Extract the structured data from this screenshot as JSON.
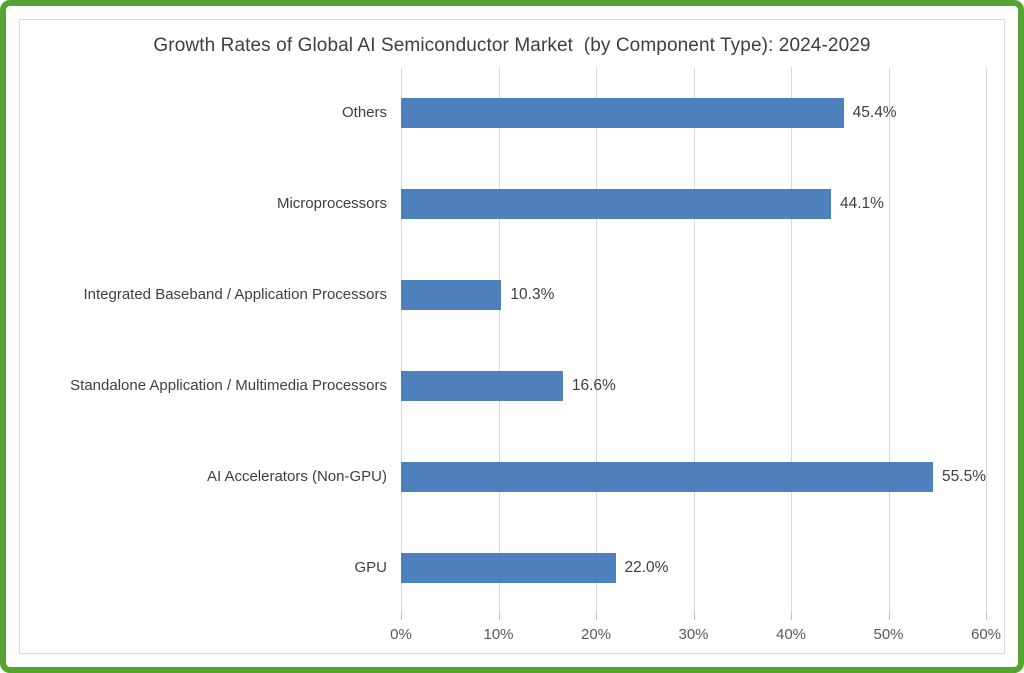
{
  "frame": {
    "border_color": "#55a331",
    "inner_border_color": "#d9d9d9"
  },
  "chart_data": {
    "type": "bar",
    "orientation": "horizontal",
    "title": "Growth Rates of Global AI Semiconductor Market  (by Component Type): 2024-2029",
    "xlabel": "",
    "ylabel": "",
    "categories": [
      "Others",
      "Microprocessors",
      "Integrated Baseband / Application Processors",
      "Standalone Application / Multimedia Processors",
      "AI Accelerators (Non-GPU)",
      "GPU"
    ],
    "values": [
      45.4,
      44.1,
      10.3,
      16.6,
      55.5,
      22.0
    ],
    "value_labels": [
      "45.4%",
      "44.1%",
      "10.3%",
      "16.6%",
      "55.5%",
      "22.0%"
    ],
    "xlim": [
      0,
      60
    ],
    "x_ticks": [
      "0%",
      "10%",
      "20%",
      "30%",
      "40%",
      "50%",
      "60%"
    ],
    "x_tick_values": [
      0,
      10,
      20,
      30,
      40,
      50,
      60
    ],
    "grid": true,
    "legend": "none",
    "bar_color": "#4e80bd",
    "gridline_color": "#d9d9d9",
    "text_color": "#3f3f3f",
    "axis_text_color": "#595959"
  }
}
